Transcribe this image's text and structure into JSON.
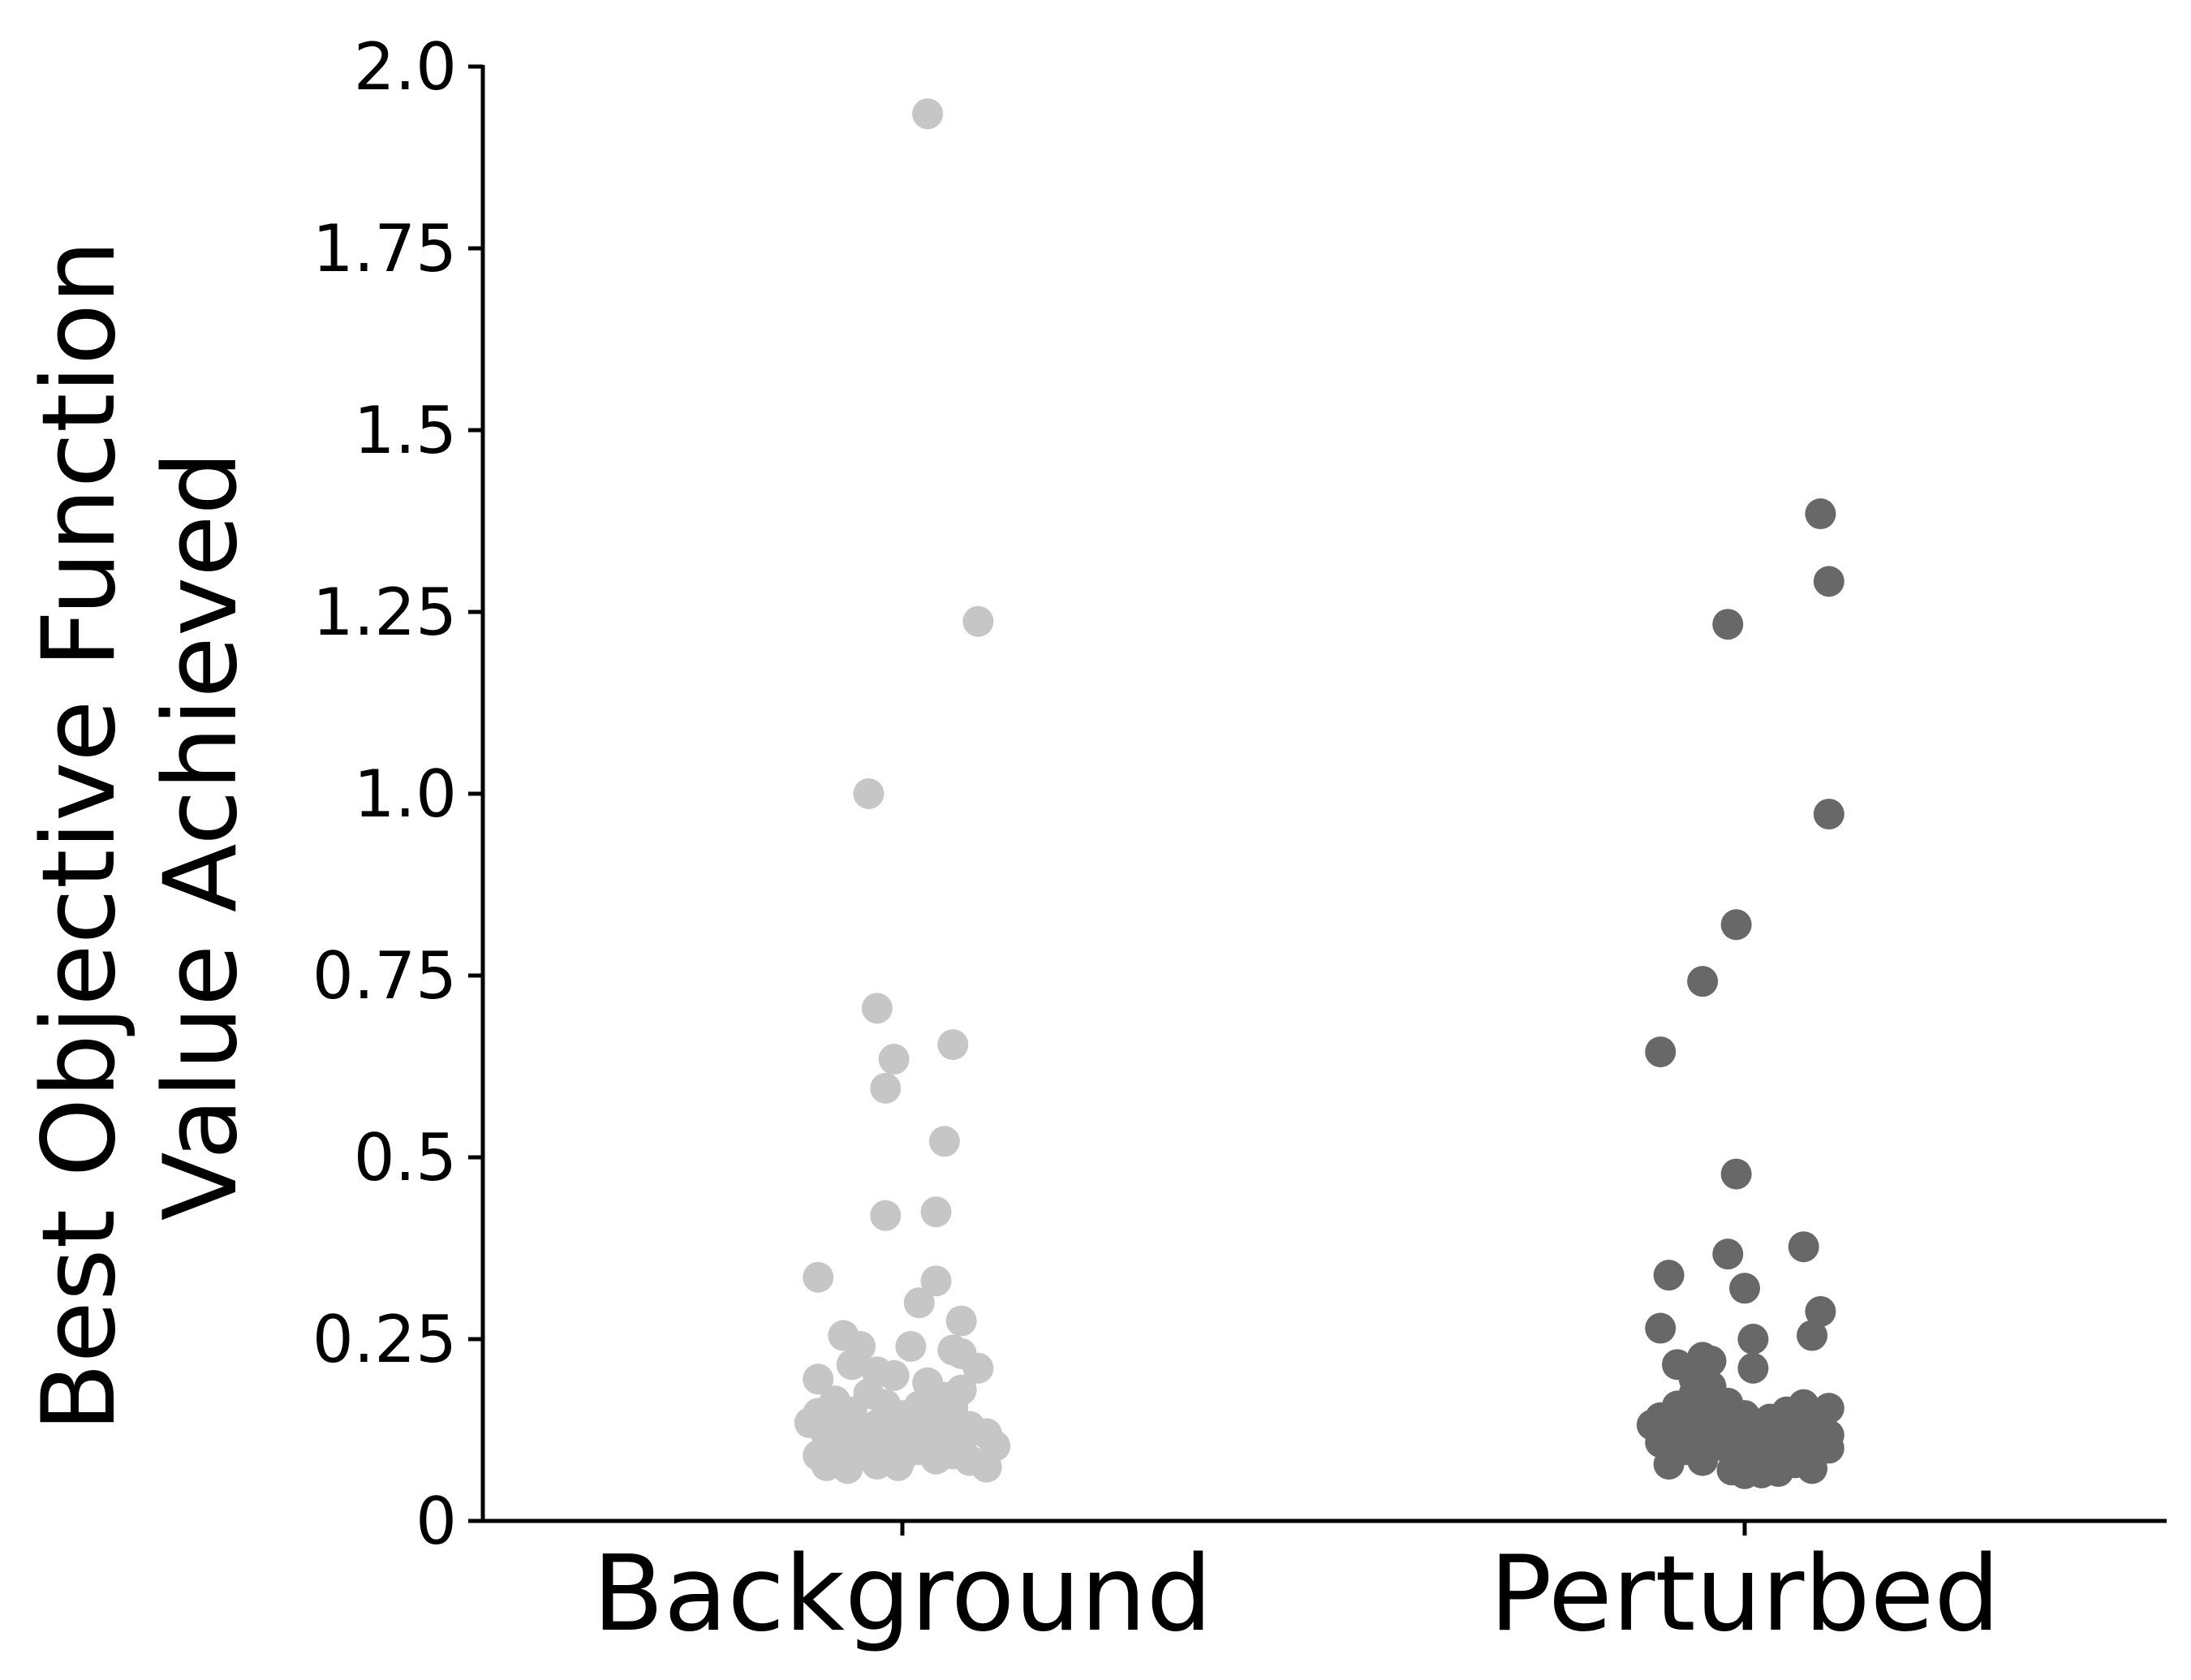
{
  "chart_data": {
    "type": "scatter",
    "title": "",
    "xlabel": "",
    "ylabel_lines": [
      "Best Objective Function",
      "Value Achieved"
    ],
    "categories": [
      "Background",
      "Perturbed"
    ],
    "ylim": [
      0,
      2.0
    ],
    "yticks": [
      0,
      0.25,
      0.5,
      0.75,
      1.0,
      1.25,
      1.5,
      1.75,
      2.0
    ],
    "ytick_labels": [
      "0",
      "0.25",
      "0.5",
      "0.75",
      "1.0",
      "1.25",
      "1.5",
      "1.75",
      "2.0"
    ],
    "grid": false,
    "legend": "none",
    "series": [
      {
        "category": "Background",
        "color": "#c6c6c6",
        "points": [
          {
            "jitter": 0.03,
            "y": 1.935
          },
          {
            "jitter": 0.09,
            "y": 1.237
          },
          {
            "jitter": -0.04,
            "y": 1.0
          },
          {
            "jitter": -0.03,
            "y": 0.705
          },
          {
            "jitter": 0.06,
            "y": 0.655
          },
          {
            "jitter": -0.01,
            "y": 0.635
          },
          {
            "jitter": -0.02,
            "y": 0.595
          },
          {
            "jitter": 0.05,
            "y": 0.522
          },
          {
            "jitter": 0.04,
            "y": 0.425
          },
          {
            "jitter": -0.02,
            "y": 0.42
          },
          {
            "jitter": -0.1,
            "y": 0.335
          },
          {
            "jitter": 0.04,
            "y": 0.33
          },
          {
            "jitter": 0.02,
            "y": 0.3
          },
          {
            "jitter": 0.07,
            "y": 0.275
          },
          {
            "jitter": -0.07,
            "y": 0.255
          },
          {
            "jitter": -0.05,
            "y": 0.24
          },
          {
            "jitter": 0.01,
            "y": 0.24
          },
          {
            "jitter": 0.06,
            "y": 0.235
          },
          {
            "jitter": 0.07,
            "y": 0.23
          },
          {
            "jitter": -0.06,
            "y": 0.215
          },
          {
            "jitter": 0.09,
            "y": 0.21
          },
          {
            "jitter": -0.03,
            "y": 0.205
          },
          {
            "jitter": -0.01,
            "y": 0.2
          },
          {
            "jitter": -0.1,
            "y": 0.195
          },
          {
            "jitter": 0.03,
            "y": 0.19
          },
          {
            "jitter": 0.07,
            "y": 0.18
          },
          {
            "jitter": -0.04,
            "y": 0.175
          },
          {
            "jitter": 0.05,
            "y": 0.17
          },
          {
            "jitter": -0.08,
            "y": 0.165
          },
          {
            "jitter": -0.02,
            "y": 0.16
          },
          {
            "jitter": 0.02,
            "y": 0.158
          },
          {
            "jitter": 0.06,
            "y": 0.155
          },
          {
            "jitter": -0.06,
            "y": 0.15
          },
          {
            "jitter": -0.1,
            "y": 0.148
          },
          {
            "jitter": 0.0,
            "y": 0.145
          },
          {
            "jitter": 0.04,
            "y": 0.14
          },
          {
            "jitter": -0.07,
            "y": 0.138
          },
          {
            "jitter": -0.11,
            "y": 0.135
          },
          {
            "jitter": -0.03,
            "y": 0.132
          },
          {
            "jitter": 0.08,
            "y": 0.13
          },
          {
            "jitter": 0.01,
            "y": 0.128
          },
          {
            "jitter": -0.05,
            "y": 0.125
          },
          {
            "jitter": 0.05,
            "y": 0.122
          },
          {
            "jitter": 0.1,
            "y": 0.12
          },
          {
            "jitter": -0.09,
            "y": 0.118
          },
          {
            "jitter": -0.01,
            "y": 0.115
          },
          {
            "jitter": 0.03,
            "y": 0.112
          },
          {
            "jitter": -0.06,
            "y": 0.11
          },
          {
            "jitter": 0.07,
            "y": 0.108
          },
          {
            "jitter": -0.02,
            "y": 0.105
          },
          {
            "jitter": 0.11,
            "y": 0.103
          },
          {
            "jitter": -0.08,
            "y": 0.1
          },
          {
            "jitter": 0.02,
            "y": 0.098
          },
          {
            "jitter": -0.04,
            "y": 0.095
          },
          {
            "jitter": 0.06,
            "y": 0.092
          },
          {
            "jitter": -0.1,
            "y": 0.09
          },
          {
            "jitter": 0.0,
            "y": 0.088
          },
          {
            "jitter": 0.04,
            "y": 0.085
          },
          {
            "jitter": 0.08,
            "y": 0.083
          },
          {
            "jitter": -0.07,
            "y": 0.08
          },
          {
            "jitter": -0.03,
            "y": 0.078
          },
          {
            "jitter": -0.09,
            "y": 0.076
          },
          {
            "jitter": 0.1,
            "y": 0.074
          },
          {
            "jitter": -0.005,
            "y": 0.076
          },
          {
            "jitter": -0.065,
            "y": 0.072
          }
        ]
      },
      {
        "category": "Perturbed",
        "color": "#686868",
        "points": [
          {
            "jitter": 0.09,
            "y": 1.385
          },
          {
            "jitter": 0.1,
            "y": 1.292
          },
          {
            "jitter": -0.02,
            "y": 1.233
          },
          {
            "jitter": 0.1,
            "y": 0.972
          },
          {
            "jitter": -0.01,
            "y": 0.82
          },
          {
            "jitter": -0.05,
            "y": 0.742
          },
          {
            "jitter": -0.1,
            "y": 0.645
          },
          {
            "jitter": -0.01,
            "y": 0.477
          },
          {
            "jitter": 0.07,
            "y": 0.377
          },
          {
            "jitter": -0.02,
            "y": 0.367
          },
          {
            "jitter": -0.09,
            "y": 0.338
          },
          {
            "jitter": 0.0,
            "y": 0.32
          },
          {
            "jitter": 0.09,
            "y": 0.288
          },
          {
            "jitter": -0.1,
            "y": 0.265
          },
          {
            "jitter": 0.08,
            "y": 0.255
          },
          {
            "jitter": 0.01,
            "y": 0.25
          },
          {
            "jitter": -0.05,
            "y": 0.225
          },
          {
            "jitter": -0.04,
            "y": 0.22
          },
          {
            "jitter": -0.08,
            "y": 0.215
          },
          {
            "jitter": 0.01,
            "y": 0.21
          },
          {
            "jitter": -0.06,
            "y": 0.195
          },
          {
            "jitter": -0.04,
            "y": 0.185
          },
          {
            "jitter": -0.06,
            "y": 0.175
          },
          {
            "jitter": -0.05,
            "y": 0.168
          },
          {
            "jitter": -0.02,
            "y": 0.162
          },
          {
            "jitter": 0.07,
            "y": 0.16
          },
          {
            "jitter": -0.08,
            "y": 0.158
          },
          {
            "jitter": 0.1,
            "y": 0.155
          },
          {
            "jitter": -0.03,
            "y": 0.152
          },
          {
            "jitter": 0.05,
            "y": 0.15
          },
          {
            "jitter": -0.07,
            "y": 0.148
          },
          {
            "jitter": 0.09,
            "y": 0.146
          },
          {
            "jitter": 0.0,
            "y": 0.145
          },
          {
            "jitter": -0.1,
            "y": 0.142
          },
          {
            "jitter": 0.03,
            "y": 0.14
          },
          {
            "jitter": -0.05,
            "y": 0.137
          },
          {
            "jitter": 0.06,
            "y": 0.135
          },
          {
            "jitter": -0.11,
            "y": 0.132
          },
          {
            "jitter": -0.02,
            "y": 0.13
          },
          {
            "jitter": 0.08,
            "y": 0.128
          },
          {
            "jitter": 0.02,
            "y": 0.125
          },
          {
            "jitter": -0.08,
            "y": 0.123
          },
          {
            "jitter": -0.04,
            "y": 0.12
          },
          {
            "jitter": 0.1,
            "y": 0.118
          },
          {
            "jitter": 0.04,
            "y": 0.115
          },
          {
            "jitter": -0.06,
            "y": 0.113
          },
          {
            "jitter": 0.0,
            "y": 0.11
          },
          {
            "jitter": -0.1,
            "y": 0.108
          },
          {
            "jitter": 0.07,
            "y": 0.106
          },
          {
            "jitter": -0.03,
            "y": 0.104
          },
          {
            "jitter": 0.03,
            "y": 0.102
          },
          {
            "jitter": 0.1,
            "y": 0.1
          },
          {
            "jitter": -0.07,
            "y": 0.098
          },
          {
            "jitter": 0.05,
            "y": 0.095
          },
          {
            "jitter": -0.01,
            "y": 0.093
          },
          {
            "jitter": 0.08,
            "y": 0.09
          },
          {
            "jitter": 0.02,
            "y": 0.085
          },
          {
            "jitter": -0.05,
            "y": 0.083
          },
          {
            "jitter": 0.06,
            "y": 0.08
          },
          {
            "jitter": -0.09,
            "y": 0.078
          },
          {
            "jitter": 0.08,
            "y": 0.072
          },
          {
            "jitter": 0.02,
            "y": 0.066
          },
          {
            "jitter": 0.0,
            "y": 0.065
          },
          {
            "jitter": 0.04,
            "y": 0.068
          },
          {
            "jitter": -0.015,
            "y": 0.07
          }
        ]
      }
    ]
  }
}
